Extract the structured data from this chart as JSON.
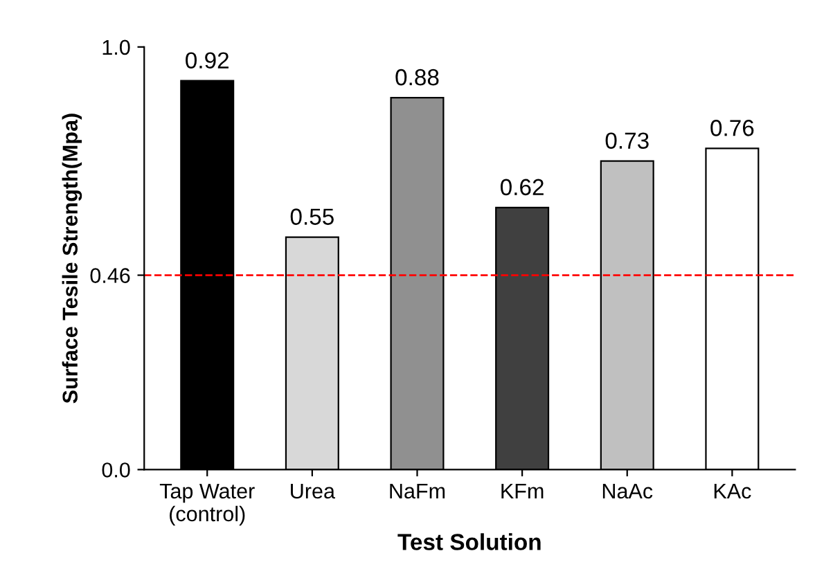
{
  "chart_data": {
    "type": "bar",
    "xlabel": "Test Solution",
    "ylabel": "Surface Tesile Strength(Mpa)",
    "categories": [
      "Tap Water\n(control)",
      "Urea",
      "NaFm",
      "KFm",
      "NaAc",
      "KAc"
    ],
    "values": [
      0.92,
      0.55,
      0.88,
      0.62,
      0.73,
      0.76
    ],
    "colors": [
      "#000000",
      "#d8d8d8",
      "#909090",
      "#404040",
      "#c0c0c0",
      "#ffffff"
    ],
    "ylim": [
      0,
      1
    ],
    "yticks": [
      {
        "value": 0,
        "label": "0.0"
      },
      0.46,
      {
        "value": 1,
        "label": "1.0"
      }
    ],
    "ref_lines": [
      {
        "axis": "y",
        "value": 0.46,
        "color": "#ff0000",
        "line_style": "dashed"
      }
    ],
    "data_labels": true,
    "grid": false
  }
}
